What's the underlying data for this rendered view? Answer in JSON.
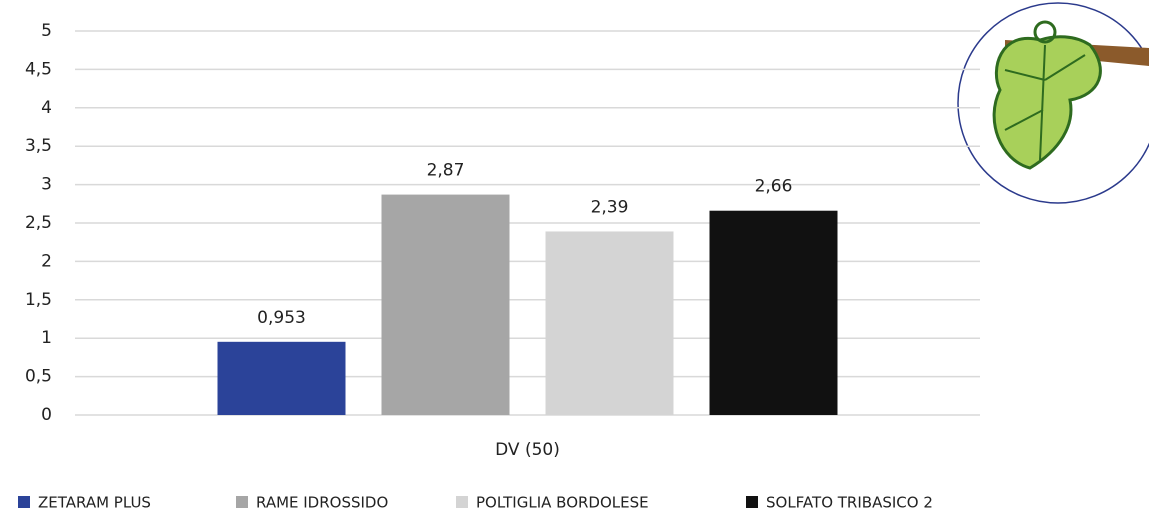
{
  "chart_data": {
    "type": "bar",
    "categories": [
      "DV (50)"
    ],
    "series": [
      {
        "name": "ZETARAM PLUS",
        "color": "#2b4399",
        "values": [
          0.953
        ],
        "value_labels": [
          "0,953"
        ]
      },
      {
        "name": "RAME IDROSSIDO",
        "color": "#a6a6a6",
        "values": [
          2.87
        ],
        "value_labels": [
          "2,87"
        ]
      },
      {
        "name": "POLTIGLIA BORDOLESE",
        "color": "#d4d4d4",
        "values": [
          2.39
        ],
        "value_labels": [
          "2,39"
        ]
      },
      {
        "name": "SOLFATO TRIBASICO 2",
        "color": "#111111",
        "values": [
          2.66
        ],
        "value_labels": [
          "2,66"
        ]
      }
    ],
    "ylim": [
      0,
      5
    ],
    "yticks": [
      0,
      {
        "value": 0.5,
        "label": "0,5"
      },
      1,
      {
        "value": 1.5,
        "label": "1,5"
      },
      2,
      {
        "value": 2.5,
        "label": "2,5"
      },
      3,
      {
        "value": 3.5,
        "label": "3,5"
      },
      4,
      {
        "value": 4.5,
        "label": "4,5"
      },
      5
    ],
    "grid": true,
    "legend": "bottom"
  }
}
